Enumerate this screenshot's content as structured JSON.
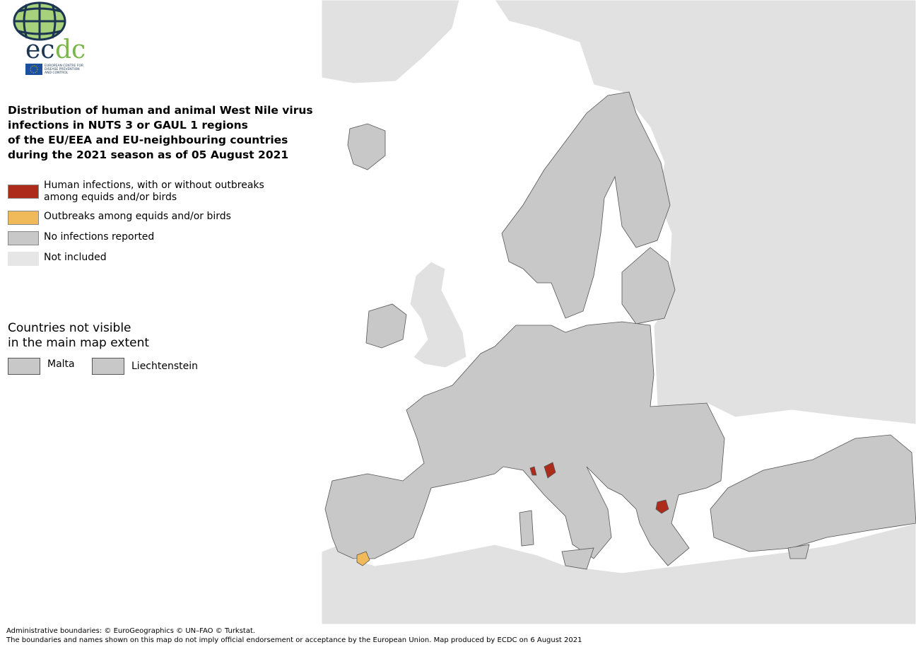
{
  "logo": {
    "wordmark": "ecdc",
    "subtitle": "EUROPEAN CENTRE FOR DISEASE PREVENTION AND CONTROL"
  },
  "title_lines": [
    "Distribution of human and animal West Nile virus",
    "infections in NUTS 3 or GAUL 1 regions",
    "of the EU/EEA and EU-neighbouring countries",
    "during the 2021 season as of  05 August 2021"
  ],
  "legend": [
    {
      "label": "Human infections, with or without outbreaks among equids and/or birds",
      "color": "#ad2b1a"
    },
    {
      "label": "Outbreaks among equids and/or birds",
      "color": "#f0b95a"
    },
    {
      "label": "No infections reported",
      "color": "#c8c8c8"
    },
    {
      "label": "Not included",
      "color": "#e6e6e6"
    }
  ],
  "not_visible": {
    "title_lines": [
      "Countries not visible",
      "in the main map extent"
    ],
    "items": [
      {
        "label": "Malta",
        "color": "#c8c8c8"
      },
      {
        "label": "Liechtenstein",
        "color": "#c8c8c8"
      }
    ]
  },
  "footer": [
    "Administrative boundaries: © EuroGeographics © UN–FAO © Turkstat.",
    "The boundaries and names shown on this map do not imply official endorsement or acceptance by the European Union. Map produced by ECDC on 6 August 2021"
  ],
  "colors": {
    "sea": "#ffffff",
    "not_included": "#e1e1e1",
    "no_infection": "#c8c8c8",
    "human": "#ad2b1a",
    "animal": "#f0b95a",
    "border": "#555555"
  }
}
